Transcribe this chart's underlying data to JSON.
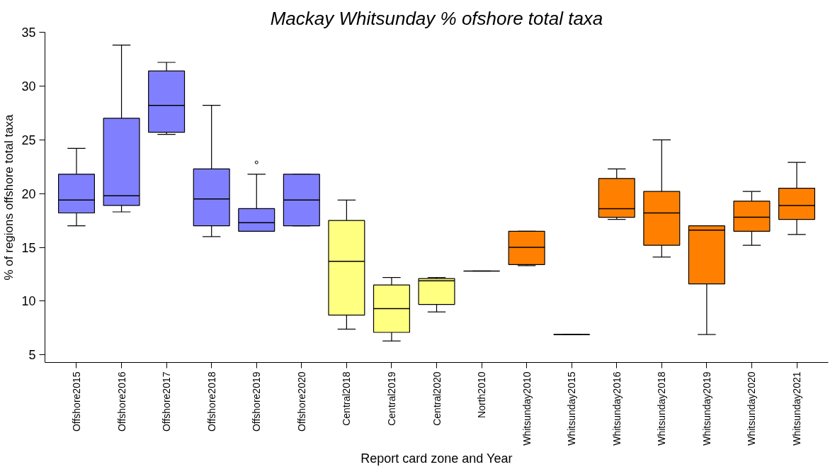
{
  "chart_data": {
    "type": "box",
    "title": "Mackay Whitsunday % ofshore total taxa",
    "xlabel": "Report card zone and Year",
    "ylabel": "% of regions offshore total taxa",
    "categories": [
      "Offshore2015",
      "Offshore2016",
      "Offshore2017",
      "Offshore2018",
      "Offshore2019",
      "Offshore2020",
      "Central2018",
      "Central2019",
      "Central2020",
      "North2010",
      "Whitsunday2010",
      "Whitsunday2015",
      "Whitsunday2016",
      "Whitsunday2018",
      "Whitsunday2019",
      "Whitsunday2020",
      "Whitsunday2021"
    ],
    "colors": [
      "#8080ff",
      "#8080ff",
      "#8080ff",
      "#8080ff",
      "#8080ff",
      "#8080ff",
      "#ffff80",
      "#ffff80",
      "#ffff80",
      "#000000",
      "#ff8000",
      "#000000",
      "#ff8000",
      "#ff8000",
      "#ff8000",
      "#ff8000",
      "#ff8000"
    ],
    "boxes": [
      {
        "low": 17.0,
        "q1": 18.2,
        "median": 19.4,
        "q3": 21.8,
        "high": 24.2
      },
      {
        "low": 18.3,
        "q1": 18.9,
        "median": 19.8,
        "q3": 27.0,
        "high": 33.8
      },
      {
        "low": 25.5,
        "q1": 25.7,
        "median": 28.2,
        "q3": 31.4,
        "high": 32.2
      },
      {
        "low": 16.0,
        "q1": 17.0,
        "median": 19.5,
        "q3": 22.3,
        "high": 28.2
      },
      {
        "low": 16.5,
        "q1": 16.5,
        "median": 17.3,
        "q3": 18.6,
        "high": 21.8,
        "outliers": [
          22.9
        ]
      },
      {
        "low": 17.0,
        "q1": 17.0,
        "median": 19.4,
        "q3": 21.8,
        "high": 21.8
      },
      {
        "low": 7.4,
        "q1": 8.7,
        "median": 13.7,
        "q3": 17.5,
        "high": 19.4
      },
      {
        "low": 6.3,
        "q1": 7.1,
        "median": 9.3,
        "q3": 11.5,
        "high": 12.2
      },
      {
        "low": 9.0,
        "q1": 9.7,
        "median": 11.9,
        "q3": 12.1,
        "high": 12.2
      },
      {
        "low": 12.8,
        "q1": 12.8,
        "median": 12.8,
        "q3": 12.8,
        "high": 12.8
      },
      {
        "low": 13.3,
        "q1": 13.4,
        "median": 15.0,
        "q3": 16.5,
        "high": 16.5
      },
      {
        "low": 6.9,
        "q1": 6.9,
        "median": 6.9,
        "q3": 6.9,
        "high": 6.9
      },
      {
        "low": 17.6,
        "q1": 17.8,
        "median": 18.6,
        "q3": 21.4,
        "high": 22.3
      },
      {
        "low": 14.1,
        "q1": 15.2,
        "median": 18.2,
        "q3": 20.2,
        "high": 25.0
      },
      {
        "low": 6.9,
        "q1": 11.6,
        "median": 16.6,
        "q3": 17.0,
        "high": 17.0
      },
      {
        "low": 15.2,
        "q1": 16.5,
        "median": 17.8,
        "q3": 19.3,
        "high": 20.2
      },
      {
        "low": 16.2,
        "q1": 17.6,
        "median": 18.9,
        "q3": 20.5,
        "high": 22.9
      }
    ],
    "ylim": [
      4.3,
      35
    ],
    "yticks": [
      5,
      10,
      15,
      20,
      25,
      30,
      35
    ],
    "grid": false
  }
}
